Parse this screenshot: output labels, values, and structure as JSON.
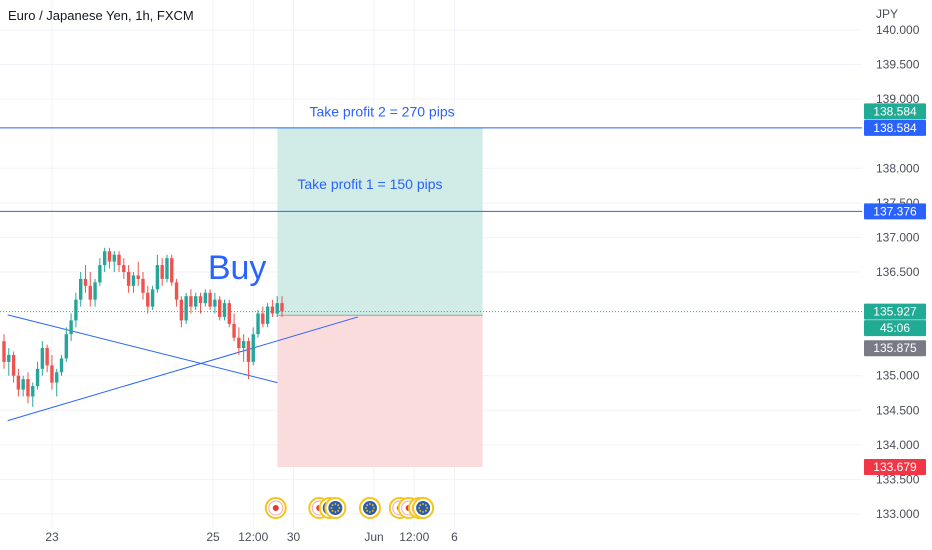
{
  "header": {
    "title": "Euro / Japanese Yen, 1h, FXCM"
  },
  "colors": {
    "up": "#26a69a",
    "down": "#ef5350",
    "accent": "#2962ff",
    "profit_zone": "#d1ece6",
    "loss_zone": "#fbdcdd",
    "current_tag": "#22ab94",
    "gray_tag": "#787b86",
    "red_tag": "#f23645"
  },
  "chart_data": {
    "type": "candlestick",
    "title": "Euro / Japanese Yen, 1h, FXCM",
    "currency_label": "JPY",
    "y_ticks": [
      "140.000",
      "139.500",
      "139.000",
      "138.000",
      "137.500",
      "137.000",
      "136.500",
      "135.000",
      "134.500",
      "134.000",
      "133.500",
      "133.000"
    ],
    "x_ticks": [
      {
        "label": "23",
        "pos": 0.0
      },
      {
        "label": "25",
        "pos": 2.0
      },
      {
        "label": "12:00",
        "pos": 2.5
      },
      {
        "label": "30",
        "pos": 3.0
      },
      {
        "label": "Jun",
        "pos": 4.0
      },
      {
        "label": "12:00",
        "pos": 4.5
      },
      {
        "label": "6",
        "pos": 5.0
      }
    ],
    "ylim": [
      132.9,
      140.3
    ],
    "price_tags": [
      {
        "name": "take-profit-2-tag",
        "text": "138.584",
        "value": 138.584,
        "color": "#2962ff"
      },
      {
        "name": "take-profit-2-upper-tag",
        "text": "138.584",
        "value": 138.584,
        "color": "#22ab94",
        "offset": -1
      },
      {
        "name": "take-profit-1-tag",
        "text": "137.376",
        "value": 137.376,
        "color": "#2962ff"
      },
      {
        "name": "current-price-tag",
        "text": "135.927",
        "value": 135.927,
        "color": "#22ab94",
        "offset": 0
      },
      {
        "name": "countdown-tag",
        "text": "45:06",
        "value": 135.927,
        "color": "#22ab94",
        "offset": 1
      },
      {
        "name": "entry-price-tag",
        "text": "135.875",
        "value": 135.875,
        "color": "#787b86",
        "offset": 2
      },
      {
        "name": "stop-loss-tag",
        "text": "133.679",
        "value": 133.679,
        "color": "#f23645"
      }
    ],
    "position": {
      "type": "long",
      "entry": 135.875,
      "target": 138.584,
      "stop": 133.679,
      "start_pos": 2.8,
      "end_pos": 5.35
    },
    "annotations": [
      {
        "name": "take-profit-2-label",
        "text": "Take profit 2 = 270 pips",
        "value": 138.75,
        "pos": 4.1
      },
      {
        "name": "take-profit-1-label",
        "text": "Take profit 1 = 150 pips",
        "value": 137.7,
        "pos": 3.95
      },
      {
        "name": "buy-label",
        "text": "Buy",
        "value": 136.4,
        "pos": 2.3
      }
    ],
    "hlines": [
      138.584,
      137.376
    ],
    "trendlines": [
      {
        "x1": -0.55,
        "y1": 135.88,
        "x2": 2.8,
        "y2": 134.9
      },
      {
        "x1": -0.55,
        "y1": 134.35,
        "x2": 3.8,
        "y2": 135.85
      }
    ],
    "candles": [
      [
        135.5,
        135.6,
        135.1,
        135.2
      ],
      [
        135.2,
        135.4,
        135.0,
        135.3
      ],
      [
        135.3,
        135.35,
        134.9,
        135.0
      ],
      [
        135.0,
        135.1,
        134.7,
        134.8
      ],
      [
        134.8,
        135.0,
        134.7,
        134.95
      ],
      [
        134.95,
        135.05,
        134.6,
        134.7
      ],
      [
        134.7,
        134.9,
        134.55,
        134.85
      ],
      [
        134.85,
        135.2,
        134.8,
        135.1
      ],
      [
        135.1,
        135.5,
        135.0,
        135.4
      ],
      [
        135.4,
        135.45,
        135.05,
        135.15
      ],
      [
        135.15,
        135.3,
        134.8,
        134.9
      ],
      [
        134.9,
        135.1,
        134.7,
        135.05
      ],
      [
        135.05,
        135.3,
        135.0,
        135.25
      ],
      [
        135.25,
        135.7,
        135.2,
        135.6
      ],
      [
        135.6,
        135.9,
        135.5,
        135.8
      ],
      [
        135.8,
        136.2,
        135.7,
        136.1
      ],
      [
        136.1,
        136.5,
        136.0,
        136.4
      ],
      [
        136.4,
        136.6,
        136.2,
        136.3
      ],
      [
        136.3,
        136.5,
        136.0,
        136.1
      ],
      [
        136.1,
        136.4,
        136.0,
        136.35
      ],
      [
        136.35,
        136.7,
        136.3,
        136.6
      ],
      [
        136.6,
        136.85,
        136.5,
        136.8
      ],
      [
        136.8,
        136.85,
        136.55,
        136.65
      ],
      [
        136.65,
        136.8,
        136.5,
        136.75
      ],
      [
        136.75,
        136.8,
        136.5,
        136.6
      ],
      [
        136.6,
        136.7,
        136.4,
        136.5
      ],
      [
        136.5,
        136.6,
        136.2,
        136.3
      ],
      [
        136.3,
        136.5,
        136.2,
        136.45
      ],
      [
        136.45,
        136.65,
        136.3,
        136.4
      ],
      [
        136.4,
        136.5,
        136.1,
        136.2
      ],
      [
        136.2,
        136.3,
        135.9,
        136.0
      ],
      [
        136.0,
        136.3,
        135.95,
        136.25
      ],
      [
        136.25,
        136.75,
        136.2,
        136.6
      ],
      [
        136.6,
        136.7,
        136.3,
        136.4
      ],
      [
        136.4,
        136.75,
        136.35,
        136.7
      ],
      [
        136.7,
        136.75,
        136.3,
        136.35
      ],
      [
        136.35,
        136.4,
        136.0,
        136.1
      ],
      [
        136.1,
        136.15,
        135.7,
        135.8
      ],
      [
        135.8,
        136.2,
        135.75,
        136.15
      ],
      [
        136.15,
        136.25,
        135.9,
        136.0
      ],
      [
        136.0,
        136.2,
        135.95,
        136.15
      ],
      [
        136.15,
        136.2,
        135.9,
        136.05
      ],
      [
        136.05,
        136.25,
        136.0,
        136.2
      ],
      [
        136.2,
        136.25,
        135.95,
        136.0
      ],
      [
        136.0,
        136.2,
        135.9,
        136.1
      ],
      [
        136.1,
        136.15,
        135.8,
        135.85
      ],
      [
        135.85,
        136.1,
        135.8,
        136.05
      ],
      [
        136.05,
        136.1,
        135.7,
        135.75
      ],
      [
        135.75,
        135.9,
        135.5,
        135.55
      ],
      [
        135.55,
        135.7,
        135.3,
        135.4
      ],
      [
        135.4,
        135.6,
        135.2,
        135.5
      ],
      [
        135.5,
        135.55,
        134.95,
        135.2
      ],
      [
        135.2,
        135.7,
        135.15,
        135.6
      ],
      [
        135.6,
        135.95,
        135.55,
        135.9
      ],
      [
        135.9,
        136.0,
        135.7,
        135.75
      ],
      [
        135.75,
        136.05,
        135.7,
        136.0
      ],
      [
        136.0,
        136.1,
        135.85,
        135.9
      ],
      [
        135.9,
        136.15,
        135.85,
        136.05
      ],
      [
        136.05,
        136.15,
        135.85,
        135.93
      ]
    ],
    "events": [
      {
        "name": "event-icon",
        "pos": 2.78,
        "type": "red"
      },
      {
        "name": "event-icon",
        "pos": 3.32,
        "type": "red"
      },
      {
        "name": "event-icon",
        "pos": 3.45,
        "type": "eu"
      },
      {
        "name": "event-icon",
        "pos": 3.52,
        "type": "eu"
      },
      {
        "name": "event-icon",
        "pos": 3.95,
        "type": "eu"
      },
      {
        "name": "event-icon",
        "pos": 4.32,
        "type": "red"
      },
      {
        "name": "event-icon",
        "pos": 4.43,
        "type": "red"
      },
      {
        "name": "event-icon",
        "pos": 4.56,
        "type": "red"
      },
      {
        "name": "event-icon",
        "pos": 4.61,
        "type": "eu"
      }
    ]
  }
}
